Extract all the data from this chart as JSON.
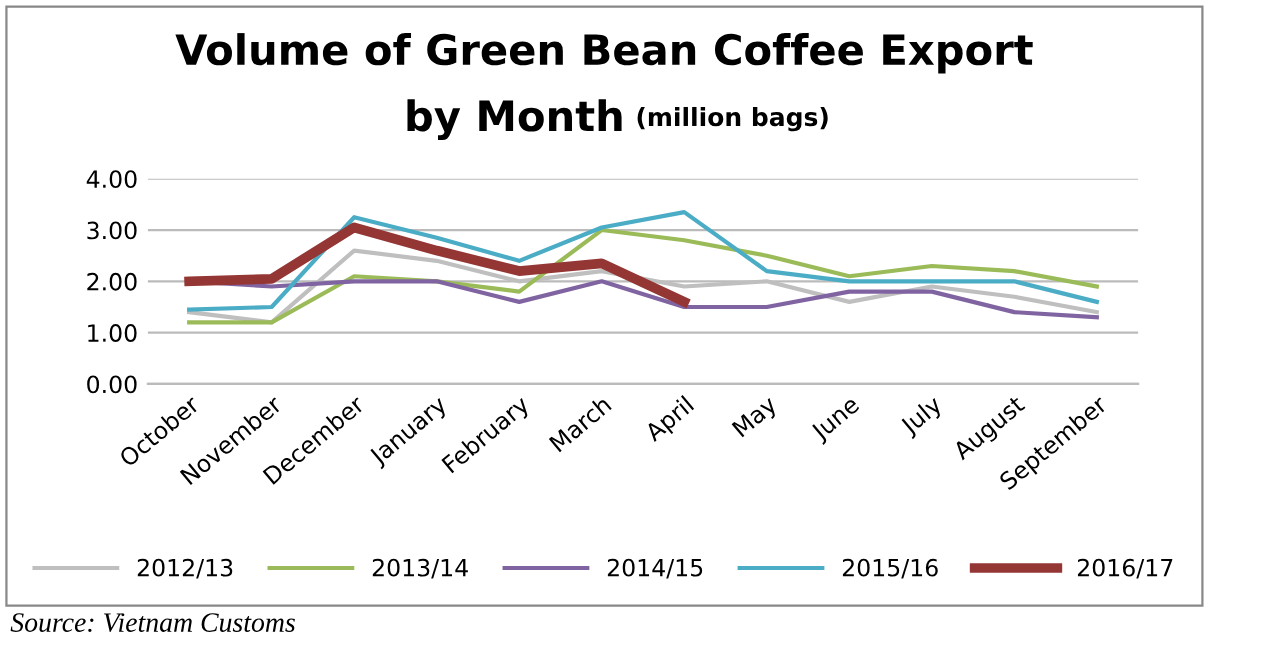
{
  "chart_data": {
    "type": "line",
    "title": "Volume of Green Bean Coffee Export\nby Month",
    "subtitle": "(million bags)",
    "categories": [
      "October",
      "November",
      "December",
      "January",
      "February",
      "March",
      "April",
      "May",
      "June",
      "July",
      "August",
      "September"
    ],
    "series": [
      {
        "name": "2012/13",
        "color": "#bfbfbf",
        "values": [
          1.4,
          1.2,
          2.6,
          2.4,
          2.0,
          2.2,
          1.9,
          2.0,
          1.6,
          1.9,
          1.7,
          1.4
        ]
      },
      {
        "name": "2013/14",
        "color": "#9bbb59",
        "values": [
          1.2,
          1.2,
          2.1,
          2.0,
          1.8,
          3.0,
          2.8,
          2.5,
          2.1,
          2.3,
          2.2,
          1.9
        ]
      },
      {
        "name": "2014/15",
        "color": "#8064a2",
        "values": [
          2.0,
          1.9,
          2.0,
          2.0,
          1.6,
          2.0,
          1.5,
          1.5,
          1.8,
          1.8,
          1.4,
          1.3
        ]
      },
      {
        "name": "2015/16",
        "color": "#4bacc6",
        "values": [
          1.45,
          1.5,
          3.25,
          2.85,
          2.4,
          3.05,
          3.35,
          2.2,
          2.0,
          2.0,
          2.0,
          1.6
        ]
      },
      {
        "name": "2016/17",
        "color": "#943634",
        "values": [
          2.0,
          2.05,
          3.05,
          2.6,
          2.2,
          2.35,
          1.6,
          null,
          null,
          null,
          null,
          null
        ]
      }
    ],
    "ylim": [
      0,
      4
    ],
    "yticks": [
      {
        "value": 0,
        "label": "0.00"
      },
      {
        "value": 1,
        "label": "1.00"
      },
      {
        "value": 2,
        "label": "2.00"
      },
      {
        "value": 3,
        "label": "3.00"
      },
      {
        "value": 4,
        "label": "4.00"
      }
    ],
    "grid": "y",
    "legend": "bottom",
    "marker": "none",
    "line_style": "solid",
    "annotations": [
      "Source: Vietnam Customs"
    ]
  }
}
